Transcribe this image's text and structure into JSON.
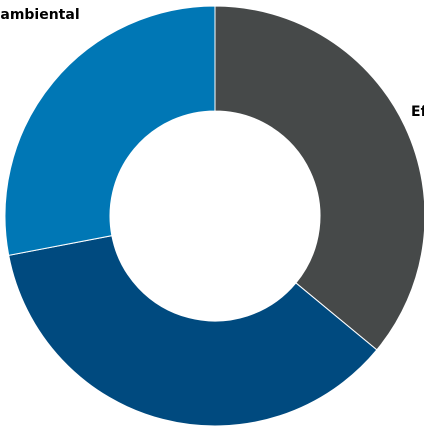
{
  "chart_data": {
    "type": "pie",
    "donut": true,
    "slices": [
      {
        "label": "Ef",
        "value": 36,
        "color": "#464949"
      },
      {
        "label": "",
        "value": 36,
        "color": "#004a7f"
      },
      {
        "label": "e ambiental",
        "value": 28,
        "color": "#0077b5"
      }
    ]
  }
}
